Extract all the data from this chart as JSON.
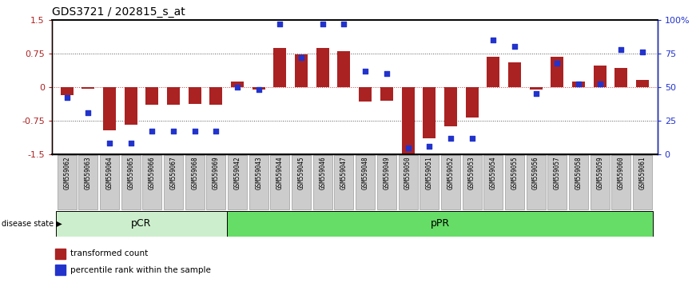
{
  "title": "GDS3721 / 202815_s_at",
  "samples": [
    "GSM559062",
    "GSM559063",
    "GSM559064",
    "GSM559065",
    "GSM559066",
    "GSM559067",
    "GSM559068",
    "GSM559069",
    "GSM559042",
    "GSM559043",
    "GSM559044",
    "GSM559045",
    "GSM559046",
    "GSM559047",
    "GSM559048",
    "GSM559049",
    "GSM559050",
    "GSM559051",
    "GSM559052",
    "GSM559053",
    "GSM559054",
    "GSM559055",
    "GSM559056",
    "GSM559057",
    "GSM559058",
    "GSM559059",
    "GSM559060",
    "GSM559061"
  ],
  "bar_values": [
    -0.18,
    -0.03,
    -0.97,
    -0.85,
    -0.4,
    -0.4,
    -0.38,
    -0.4,
    0.13,
    -0.06,
    0.87,
    0.72,
    0.87,
    0.8,
    -0.32,
    -0.3,
    -1.48,
    -1.15,
    -0.87,
    -0.68,
    0.68,
    0.55,
    -0.05,
    0.68,
    0.13,
    0.48,
    0.42,
    0.15
  ],
  "percentile_values": [
    42,
    31,
    8,
    8,
    17,
    17,
    17,
    17,
    50,
    48,
    97,
    72,
    97,
    97,
    62,
    60,
    5,
    6,
    12,
    12,
    85,
    80,
    45,
    68,
    52,
    52,
    78,
    76
  ],
  "pCR_count": 8,
  "pPR_count": 20,
  "bar_color": "#AA2222",
  "dot_color": "#2233CC",
  "dotted_line_color": "#555555",
  "zero_line_color": "#CC4444",
  "pCR_color": "#CCEECC",
  "pPR_color": "#66DD66",
  "label_bg_color": "#CCCCCC",
  "ylim": [
    -1.5,
    1.5
  ],
  "yticks_left": [
    -1.5,
    -0.75,
    0.0,
    0.75,
    1.5
  ],
  "yticks_right": [
    0,
    25,
    50,
    75,
    100
  ],
  "ylabel_right_labels": [
    "0",
    "25",
    "50",
    "75",
    "100%"
  ],
  "legend_bar_label": "transformed count",
  "legend_dot_label": "percentile rank within the sample",
  "disease_state_label": "disease state"
}
